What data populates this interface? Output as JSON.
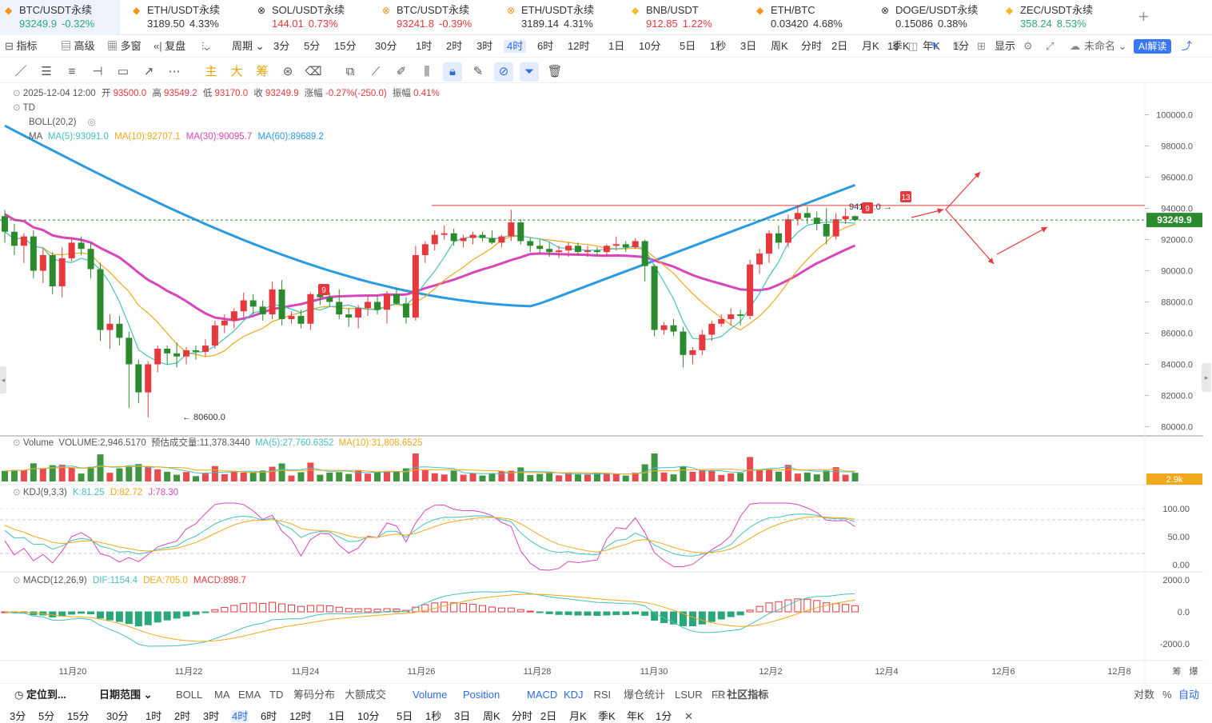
{
  "tickers": [
    {
      "name": "BTC/USDT永续",
      "value": "93249.9",
      "change": "-0.32%",
      "dir": "up",
      "icon": "btc-icon",
      "glyph": "◆",
      "active": true
    },
    {
      "name": "ETH/USDT永续",
      "value": "3189.50",
      "change": "4.33%",
      "dir": "nt",
      "icon": "eth-icon",
      "glyph": "◆"
    },
    {
      "name": "SOL/USDT永续",
      "value": "144.01",
      "change": "0.73%",
      "dir": "dn",
      "icon": "sol-icon",
      "glyph": "⊗"
    },
    {
      "name": "BTC/USDT永续",
      "value": "93241.8",
      "change": "-0.39%",
      "dir": "dn",
      "icon": "btc-icon",
      "glyph": "⊗"
    },
    {
      "name": "ETH/USDT永续",
      "value": "3189.14",
      "change": "4.31%",
      "dir": "nt",
      "icon": "eth-icon",
      "glyph": "⊗"
    },
    {
      "name": "BNB/USDT",
      "value": "912.85",
      "change": "1.22%",
      "dir": "dn",
      "icon": "bnb-icon",
      "glyph": "◆"
    },
    {
      "name": "ETH/BTC",
      "value": "0.03420",
      "change": "4.68%",
      "dir": "nt",
      "icon": "eth-icon",
      "glyph": "◆"
    },
    {
      "name": "DOGE/USDT永续",
      "value": "0.15086",
      "change": "0.38%",
      "dir": "nt",
      "icon": "doge-icon",
      "glyph": "⊗"
    },
    {
      "name": "ZEC/USDT永续",
      "value": "358.24",
      "change": "8.53%",
      "dir": "up",
      "icon": "zec-icon",
      "glyph": "◆"
    }
  ],
  "toolbar": {
    "indicator": "指标",
    "advanced": "高级",
    "multi": "多窗",
    "replay": "复盘",
    "period": "周期",
    "periods": [
      "3分",
      "5分",
      "15分",
      "30分",
      "1时",
      "2时",
      "3时",
      "4时",
      "6时",
      "12时",
      "1日",
      "10分",
      "5日",
      "1秒",
      "3日",
      "周K",
      "分时",
      "2日",
      "月K",
      "季K",
      "年K",
      "1分"
    ],
    "selected_period": "4时",
    "seconds": "1s",
    "display": "显示",
    "unnamed": "未命名",
    "ai": "AI解读"
  },
  "draw_tools": [
    "main",
    "big",
    "chip"
  ],
  "draw_labels": {
    "main": "主",
    "big": "大",
    "chip": "筹"
  },
  "ohlc": {
    "date": "2025-12-04 12:00",
    "open_label": "开",
    "open": "93500.0",
    "high_label": "高",
    "high": "93549.2",
    "low_label": "低",
    "low": "93170.0",
    "close_label": "收",
    "close": "93249.9",
    "chg_label": "涨幅",
    "chg": "-0.27%(-250.0)",
    "amp_label": "振幅",
    "amp": "0.41%"
  },
  "indicators": {
    "td": "TD",
    "boll": "BOLL(20,2)",
    "ma": "MA",
    "ma5": "MA(5):93091.0",
    "ma10": "MA(10):92707.1",
    "ma30": "MA(30):90095.7",
    "ma60": "MA(60):89689.2",
    "volume": "Volume",
    "volume_value": "VOLUME:2,946.5170",
    "volume_est": "预估成交量:11,378.3440",
    "vol_ma5": "MA(5):27,760.6352",
    "vol_ma10": "MA(10):31,808.6525",
    "kdj": "KDJ(9,3,3)",
    "kdj_k": "K:81.25",
    "kdj_d": "D:82.72",
    "kdj_j": "J:78.30",
    "macd": "MACD(12,26,9)",
    "macd_dif": "DIF:1154.4",
    "macd_dea": "DEA:705.0",
    "macd_val": "MACD:898.7"
  },
  "colors": {
    "up": "#e5393e",
    "down": "#2b8a2e",
    "ma5": "#46c2b8",
    "ma10": "#f0a91a",
    "ma30": "#d946b9",
    "ma60": "#2a9be0",
    "grid": "#eeeeee"
  },
  "chart_data": {
    "type": "candlestick",
    "price_axis": [
      "100000.0",
      "98000.0",
      "96000.0",
      "94000.0",
      "92000.0",
      "90000.0",
      "88000.0",
      "86000.0",
      "84000.0",
      "82000.0",
      "80000.0"
    ],
    "ylim": [
      79500,
      101000
    ],
    "last_price": "93249.9",
    "high_marker": "94185.0",
    "low_marker": "80600.0",
    "td_labels": [
      "9",
      "9",
      "13"
    ],
    "x_labels": [
      "11月20",
      "11月22",
      "11月24",
      "11月26",
      "11月28",
      "11月30",
      "12月2",
      "12月4",
      "12月6",
      "12月8"
    ],
    "vol_axis_label": "2.9k",
    "kdj_axis": [
      "100.00",
      "50.00",
      "0.00"
    ],
    "macd_axis": [
      "2000.0",
      "0.0",
      "-2000.0"
    ],
    "candles": [
      [
        93500,
        93900,
        91800,
        92500
      ],
      [
        92500,
        93000,
        91000,
        91600
      ],
      [
        91600,
        92400,
        90500,
        92200
      ],
      [
        92200,
        92600,
        89500,
        90000
      ],
      [
        90000,
        91500,
        89200,
        91000
      ],
      [
        91000,
        91200,
        88500,
        89000
      ],
      [
        89000,
        91500,
        88300,
        90800
      ],
      [
        90800,
        92100,
        90600,
        91800
      ],
      [
        91800,
        92200,
        91000,
        91400
      ],
      [
        91400,
        91800,
        89500,
        90100
      ],
      [
        90100,
        90500,
        85500,
        86200
      ],
      [
        86200,
        87200,
        85000,
        86600
      ],
      [
        86600,
        87100,
        85200,
        85700
      ],
      [
        85700,
        86100,
        81200,
        84000
      ],
      [
        84000,
        84300,
        81500,
        82200
      ],
      [
        82200,
        84200,
        80600,
        84000
      ],
      [
        84000,
        85200,
        83500,
        85000
      ],
      [
        85000,
        85200,
        84000,
        84700
      ],
      [
        84700,
        85400,
        83800,
        84500
      ],
      [
        84500,
        85100,
        84000,
        84900
      ],
      [
        84900,
        85200,
        84300,
        84800
      ],
      [
        84800,
        85600,
        84500,
        85200
      ],
      [
        85200,
        86800,
        85000,
        86500
      ],
      [
        86500,
        87200,
        86000,
        86800
      ],
      [
        86800,
        87600,
        86300,
        87400
      ],
      [
        87400,
        88600,
        87000,
        88100
      ],
      [
        88100,
        88500,
        87200,
        87700
      ],
      [
        87700,
        88100,
        86800,
        87200
      ],
      [
        87200,
        89300,
        86900,
        88800
      ],
      [
        88800,
        89400,
        86500,
        86900
      ],
      [
        86900,
        87400,
        86600,
        87100
      ],
      [
        87100,
        87500,
        86300,
        86600
      ],
      [
        86600,
        88600,
        86200,
        88500
      ],
      [
        88500,
        89000,
        87800,
        88300
      ],
      [
        88300,
        88600,
        87700,
        88000
      ],
      [
        88000,
        88800,
        86900,
        87200
      ],
      [
        87200,
        87600,
        86400,
        87000
      ],
      [
        87000,
        87800,
        86300,
        87600
      ],
      [
        87600,
        88400,
        87100,
        88000
      ],
      [
        88000,
        88400,
        87200,
        87500
      ],
      [
        87500,
        88700,
        86600,
        88500
      ],
      [
        88500,
        88900,
        87800,
        87900
      ],
      [
        87900,
        88300,
        86600,
        87000
      ],
      [
        87000,
        91600,
        86800,
        91000
      ],
      [
        91000,
        91900,
        90500,
        91700
      ],
      [
        91700,
        92600,
        91300,
        92300
      ],
      [
        92300,
        92900,
        92000,
        92400
      ],
      [
        92400,
        92700,
        91600,
        91900
      ],
      [
        91900,
        92300,
        91500,
        92100
      ],
      [
        92100,
        92500,
        91700,
        92300
      ],
      [
        92300,
        92500,
        91900,
        92100
      ],
      [
        92100,
        92600,
        91700,
        91800
      ],
      [
        91800,
        92300,
        91500,
        92200
      ],
      [
        92200,
        93900,
        91900,
        93100
      ],
      [
        93100,
        93300,
        91700,
        91900
      ],
      [
        91900,
        92100,
        91200,
        91600
      ],
      [
        91600,
        92000,
        91100,
        91400
      ],
      [
        91400,
        91800,
        90900,
        91200
      ],
      [
        91200,
        91600,
        90800,
        91300
      ],
      [
        91300,
        91800,
        90900,
        91600
      ],
      [
        91600,
        91800,
        91000,
        91200
      ],
      [
        91200,
        91600,
        90900,
        91300
      ],
      [
        91300,
        91500,
        91000,
        91200
      ],
      [
        91200,
        91700,
        90900,
        91600
      ],
      [
        91600,
        92200,
        91300,
        91700
      ],
      [
        91700,
        91900,
        91200,
        91500
      ],
      [
        91500,
        92100,
        91400,
        91900
      ],
      [
        91900,
        92000,
        89300,
        90300
      ],
      [
        90300,
        90400,
        85800,
        86200
      ],
      [
        86200,
        86700,
        85900,
        86500
      ],
      [
        86500,
        86900,
        85800,
        86100
      ],
      [
        86100,
        86400,
        83800,
        84600
      ],
      [
        84600,
        85100,
        84000,
        84900
      ],
      [
        84900,
        86200,
        84600,
        85900
      ],
      [
        85900,
        86800,
        85500,
        86600
      ],
      [
        86600,
        87200,
        86400,
        86900
      ],
      [
        86900,
        87600,
        86500,
        87200
      ],
      [
        87200,
        87500,
        86500,
        87100
      ],
      [
        87100,
        90700,
        86900,
        90400
      ],
      [
        90400,
        91400,
        89800,
        91100
      ],
      [
        91100,
        92600,
        90500,
        92400
      ],
      [
        92400,
        92900,
        91400,
        91800
      ],
      [
        91800,
        93600,
        91500,
        93300
      ],
      [
        93300,
        94185,
        92900,
        93700
      ],
      [
        93700,
        94100,
        93000,
        93400
      ],
      [
        93400,
        93800,
        92600,
        93000
      ],
      [
        93000,
        94000,
        91700,
        92200
      ],
      [
        92200,
        93700,
        92000,
        93300
      ],
      [
        93300,
        94000,
        93000,
        93500
      ],
      [
        93500,
        93549,
        93170,
        93249.9
      ]
    ]
  },
  "bottom_bar": {
    "locate": "定位到...",
    "date_range": "日期范围",
    "main_indicators": [
      "BOLL",
      "MA",
      "EMA",
      "TD",
      "筹码分布",
      "大额成交"
    ],
    "sub_indicators": [
      "Volume",
      "Position",
      "MACD",
      "KDJ",
      "RSI",
      "爆仓统计",
      "LSUR",
      "FR"
    ],
    "community": "社区指标",
    "log": "对数",
    "pct": "%",
    "auto": "自动"
  },
  "bottom_periods": [
    "3分",
    "5分",
    "15分",
    "30分",
    "1时",
    "2时",
    "3时",
    "4时",
    "6时",
    "12时",
    "1日",
    "10分",
    "5日",
    "1秒",
    "3日",
    "周K",
    "分时",
    "2日",
    "月K",
    "季K",
    "年K",
    "1分"
  ],
  "right_labels": {
    "chip": "筹",
    "burst": "爆"
  }
}
